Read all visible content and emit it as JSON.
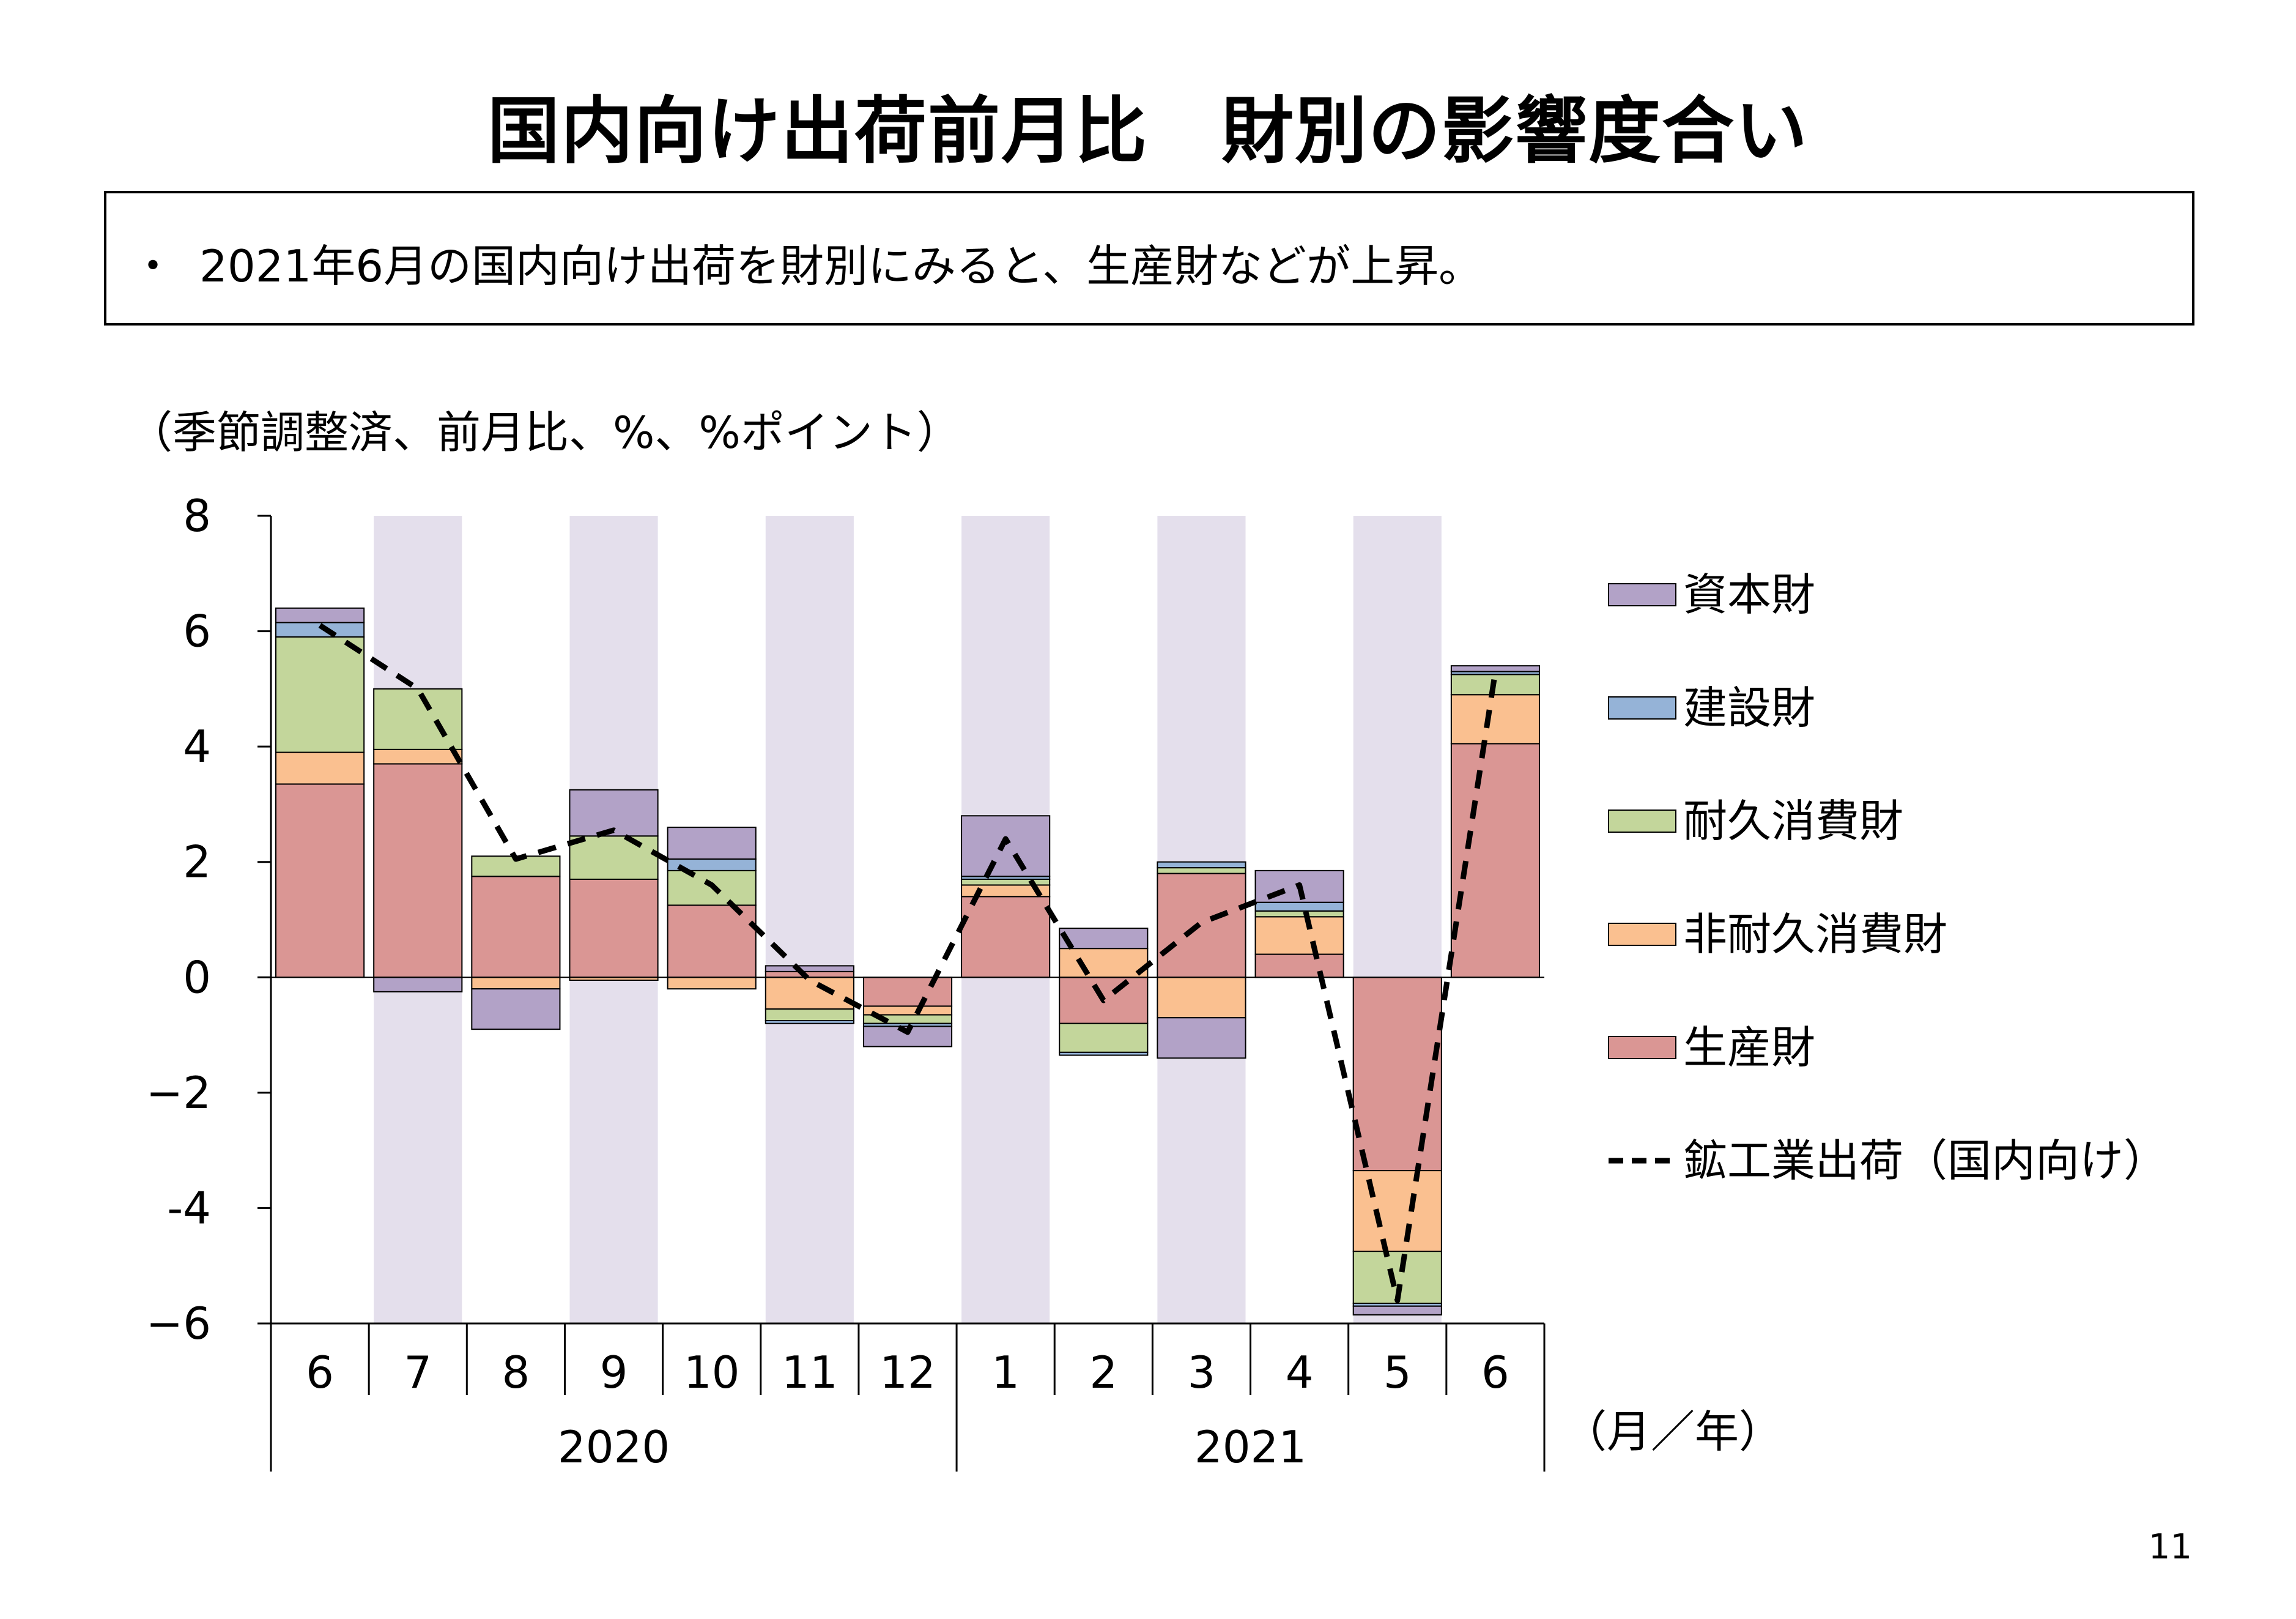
{
  "page": {
    "title": "国内向け出荷前月比　財別の影響度合い",
    "summary": "2021年6月の国内向け出荷を財別にみると、生産財などが上昇。",
    "bullet": "・",
    "unit_note": "（季節調整済、前月比、%、%ポイント）",
    "axis_unit": "（月／年）",
    "page_number": "11"
  },
  "chart_data": {
    "type": "bar",
    "stacked": true,
    "categories": [
      "6",
      "7",
      "8",
      "9",
      "10",
      "11",
      "12",
      "1",
      "2",
      "3",
      "4",
      "5",
      "6"
    ],
    "years": [
      {
        "label": "2020",
        "from": 0,
        "to": 6
      },
      {
        "label": "2021",
        "from": 7,
        "to": 12
      }
    ],
    "ylim": [
      -6,
      8
    ],
    "yticks": [
      8,
      6,
      4,
      2,
      0,
      -2,
      -4,
      -6
    ],
    "ytick_labels": [
      "8",
      "6",
      "4",
      "2",
      "0",
      "−2",
      "-4",
      "−6"
    ],
    "shaded_categories": [
      1,
      3,
      5,
      7,
      9,
      11
    ],
    "shade_color": "#e4dfec",
    "series": [
      {
        "name": "生産財",
        "color": "#da9694",
        "values": [
          3.35,
          3.7,
          1.75,
          1.7,
          1.25,
          0.1,
          -0.5,
          1.4,
          -0.8,
          1.8,
          0.4,
          -3.35,
          4.05
        ]
      },
      {
        "name": "非耐久消費財",
        "color": "#fac090",
        "values": [
          0.55,
          0.25,
          -0.2,
          -0.05,
          -0.2,
          -0.55,
          -0.15,
          0.2,
          0.5,
          -0.7,
          0.65,
          -1.4,
          0.85
        ]
      },
      {
        "name": "耐久消費財",
        "color": "#c3d69b",
        "values": [
          2.0,
          1.05,
          0.35,
          0.75,
          0.6,
          -0.2,
          -0.15,
          0.1,
          -0.5,
          0.1,
          0.1,
          -0.9,
          0.35
        ]
      },
      {
        "name": "建設財",
        "color": "#95b3d7",
        "values": [
          0.25,
          0.0,
          0.0,
          0.0,
          0.2,
          -0.05,
          -0.05,
          0.05,
          -0.05,
          0.1,
          0.15,
          -0.05,
          0.05
        ]
      },
      {
        "name": "資本財",
        "color": "#b2a2c7",
        "values": [
          0.25,
          -0.25,
          -0.7,
          0.8,
          0.55,
          0.1,
          -0.35,
          1.05,
          0.35,
          -0.7,
          0.55,
          -0.15,
          0.1
        ]
      }
    ],
    "line": {
      "name": "鉱工業出荷（国内向け）",
      "style": "dashed",
      "color": "#000000",
      "values": [
        6.1,
        5.0,
        2.05,
        2.55,
        1.6,
        -0.05,
        -0.95,
        2.4,
        -0.4,
        0.95,
        1.6,
        -5.6,
        5.3
      ]
    },
    "legend_order": [
      "資本財",
      "建設財",
      "耐久消費財",
      "非耐久消費財",
      "生産財",
      "鉱工業出荷（国内向け）"
    ],
    "legend_position": "right"
  }
}
